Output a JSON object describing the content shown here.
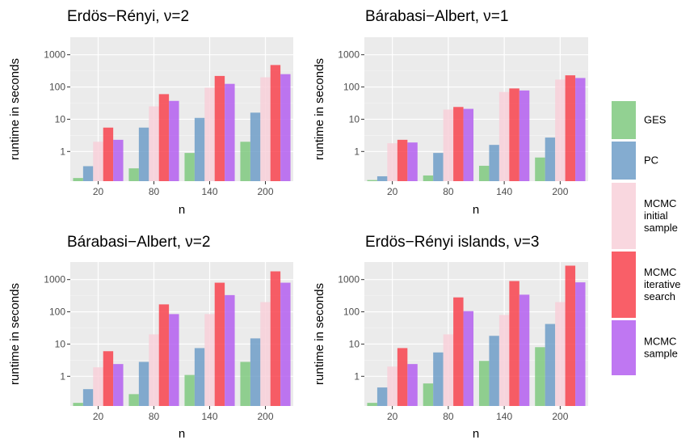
{
  "legend": {
    "items": [
      {
        "label_lines": [
          "GES"
        ],
        "color": "#7fc97f"
      },
      {
        "label_lines": [
          "PC"
        ],
        "color": "#6e9ec8"
      },
      {
        "label_lines": [
          "MCMC",
          "initial",
          "sample"
        ],
        "color": "#f8d0d9"
      },
      {
        "label_lines": [
          "MCMC",
          "iterative",
          "search"
        ],
        "color": "#f8434d"
      },
      {
        "label_lines": [
          "MCMC",
          "sample"
        ],
        "color": "#b45ff0"
      }
    ]
  },
  "chart_data": [
    {
      "type": "bar",
      "title": "Erdös−Rényi, ν=2",
      "xlabel": "n",
      "ylabel": "runtime in seconds",
      "y_scale": "log10",
      "ylim": [
        0.12,
        3500
      ],
      "yticks": [
        "1",
        "10",
        "100",
        "1000"
      ],
      "categories": [
        "20",
        "80",
        "140",
        "200"
      ],
      "series": [
        {
          "name": "GES",
          "values": [
            0.15,
            0.3,
            0.9,
            2.0
          ]
        },
        {
          "name": "PC",
          "values": [
            0.35,
            5.5,
            11,
            16
          ]
        },
        {
          "name": "MCMC initial sample",
          "values": [
            2.0,
            25,
            95,
            200
          ]
        },
        {
          "name": "MCMC iterative search",
          "values": [
            5.5,
            60,
            220,
            480
          ]
        },
        {
          "name": "MCMC sample",
          "values": [
            2.3,
            37,
            125,
            250
          ]
        }
      ]
    },
    {
      "type": "bar",
      "title": "Bárabasi−Albert, ν=1",
      "xlabel": "n",
      "ylabel": "runtime in seconds",
      "y_scale": "log10",
      "ylim": [
        0.12,
        3500
      ],
      "yticks": [
        "1",
        "10",
        "100",
        "1000"
      ],
      "categories": [
        "20",
        "80",
        "140",
        "200"
      ],
      "series": [
        {
          "name": "GES",
          "values": [
            0.13,
            0.18,
            0.36,
            0.65
          ]
        },
        {
          "name": "PC",
          "values": [
            0.17,
            0.9,
            1.6,
            2.7
          ]
        },
        {
          "name": "MCMC initial sample",
          "values": [
            1.8,
            20,
            70,
            170
          ]
        },
        {
          "name": "MCMC iterative search",
          "values": [
            2.3,
            24,
            90,
            230
          ]
        },
        {
          "name": "MCMC sample",
          "values": [
            1.9,
            21,
            78,
            190
          ]
        }
      ]
    },
    {
      "type": "bar",
      "title": "Bárabasi−Albert, ν=2",
      "xlabel": "n",
      "ylabel": "runtime in seconds",
      "y_scale": "log10",
      "ylim": [
        0.12,
        3500
      ],
      "yticks": [
        "1",
        "10",
        "100",
        "1000"
      ],
      "categories": [
        "20",
        "80",
        "140",
        "200"
      ],
      "series": [
        {
          "name": "GES",
          "values": [
            0.15,
            0.28,
            1.1,
            2.8
          ]
        },
        {
          "name": "PC",
          "values": [
            0.4,
            2.8,
            7.5,
            15
          ]
        },
        {
          "name": "MCMC initial sample",
          "values": [
            1.9,
            20,
            85,
            200
          ]
        },
        {
          "name": "MCMC iterative search",
          "values": [
            6,
            170,
            800,
            1800
          ]
        },
        {
          "name": "MCMC sample",
          "values": [
            2.4,
            85,
            330,
            800
          ]
        }
      ]
    },
    {
      "type": "bar",
      "title": "Erdös−Rényi islands, ν=3",
      "xlabel": "n",
      "ylabel": "runtime in seconds",
      "y_scale": "log10",
      "ylim": [
        0.12,
        3500
      ],
      "yticks": [
        "1",
        "10",
        "100",
        "1000"
      ],
      "categories": [
        "20",
        "80",
        "140",
        "200"
      ],
      "series": [
        {
          "name": "GES",
          "values": [
            0.15,
            0.6,
            3.0,
            8.0
          ]
        },
        {
          "name": "PC",
          "values": [
            0.45,
            5.5,
            18,
            42
          ]
        },
        {
          "name": "MCMC initial sample",
          "values": [
            2.0,
            20,
            80,
            200
          ]
        },
        {
          "name": "MCMC iterative search",
          "values": [
            7.5,
            280,
            900,
            2700
          ]
        },
        {
          "name": "MCMC sample",
          "values": [
            2.4,
            105,
            340,
            820
          ]
        }
      ]
    }
  ]
}
